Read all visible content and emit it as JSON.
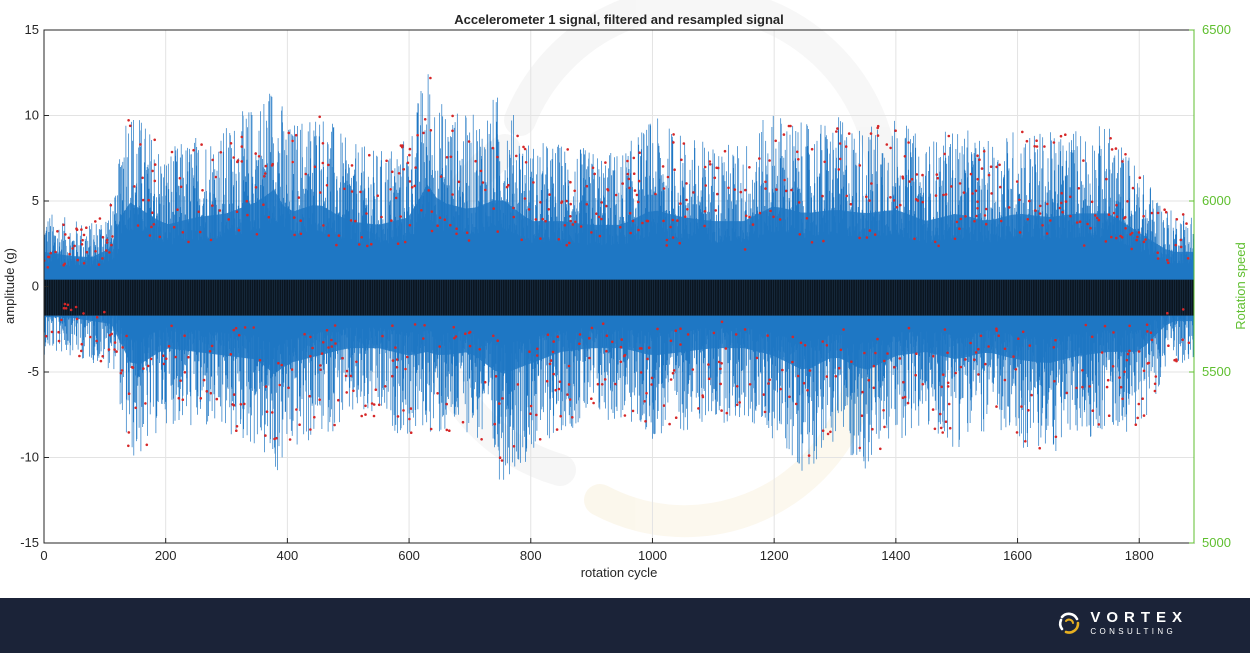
{
  "chart_data": {
    "type": "line",
    "title": "Accelerometer 1 signal, filtered and resampled signal",
    "xlabel": "rotation cycle",
    "ylabel": "amplitude (g)",
    "y2label": "Rotation speed",
    "xlim": [
      0,
      1890
    ],
    "ylim": [
      -15,
      15
    ],
    "y2lim": [
      5000,
      6500
    ],
    "xticks": [
      0,
      200,
      400,
      600,
      800,
      1000,
      1200,
      1400,
      1600,
      1800
    ],
    "yticks": [
      -15,
      -10,
      -5,
      0,
      5,
      10,
      15
    ],
    "y2ticks": [
      5000,
      5500,
      6000,
      6500
    ],
    "grid": true,
    "colors": {
      "signal": "#1f77c4",
      "dense_band": "#0a1520",
      "peaks": "#d62728",
      "right_axis": "#5fbf2f"
    },
    "envelope": {
      "x": [
        0,
        40,
        80,
        120,
        130,
        150,
        200,
        250,
        300,
        350,
        380,
        400,
        450,
        500,
        550,
        600,
        630,
        650,
        700,
        750,
        800,
        850,
        900,
        950,
        1000,
        1050,
        1100,
        1150,
        1200,
        1250,
        1300,
        1350,
        1400,
        1450,
        1500,
        1550,
        1600,
        1650,
        1700,
        1750,
        1800,
        1850,
        1890
      ],
      "upper": [
        4.5,
        4.0,
        3.8,
        5.5,
        11.5,
        10.5,
        8.0,
        9.0,
        9.5,
        11.0,
        12.7,
        9.5,
        10.8,
        8.5,
        8.0,
        9.0,
        13.3,
        11.0,
        10.0,
        11.5,
        8.5,
        8.5,
        8.0,
        8.0,
        10.0,
        9.0,
        8.5,
        8.5,
        10.5,
        9.5,
        10.0,
        9.5,
        10.0,
        8.5,
        9.5,
        8.5,
        9.5,
        9.0,
        9.5,
        9.5,
        7.0,
        4.5,
        4.5
      ],
      "lower": [
        -4.0,
        -4.0,
        -4.5,
        -5.0,
        -9.0,
        -10.5,
        -8.0,
        -8.5,
        -9.0,
        -9.5,
        -11.5,
        -10.0,
        -9.0,
        -8.0,
        -8.0,
        -9.0,
        -8.5,
        -9.0,
        -8.5,
        -11.5,
        -10.0,
        -8.5,
        -8.0,
        -8.0,
        -9.0,
        -8.5,
        -8.0,
        -8.0,
        -9.0,
        -11.0,
        -9.0,
        -11.0,
        -9.0,
        -8.5,
        -9.5,
        -8.5,
        -9.5,
        -10.0,
        -9.0,
        -8.5,
        -8.5,
        -4.5,
        -4.5
      ]
    },
    "dense_band_range": [
      -1.7,
      0.4
    ],
    "peaks_range": {
      "upper": [
        1.0,
        12.0
      ],
      "lower": [
        -10.5,
        -1.5
      ]
    }
  },
  "footer": {
    "brand_name": "VORTEX",
    "brand_sub": "CONSULTING",
    "logo_icon": "swirl-logo-icon"
  }
}
